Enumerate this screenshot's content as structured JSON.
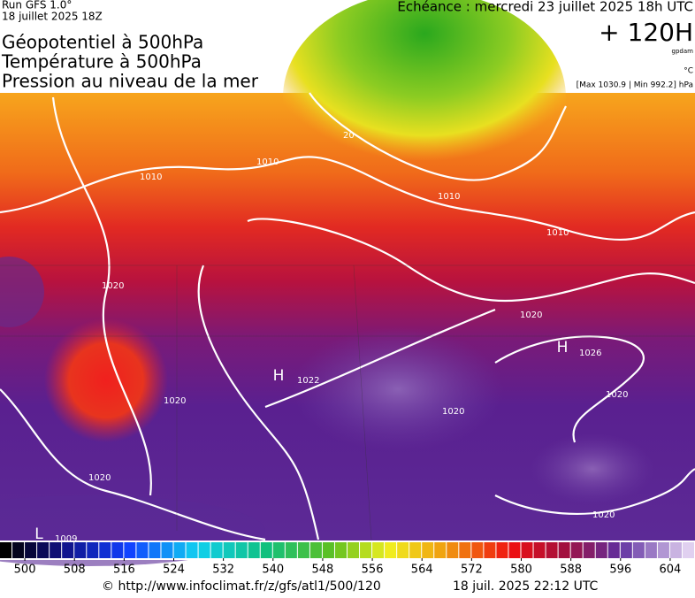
{
  "header": {
    "run": "Run GFS 1.0°",
    "run_date": "18 juillet 2025 18Z",
    "valid": "Echéance : mercredi 23 juillet 2025 18h UTC",
    "lead": "+ 120H",
    "unit_geo": "gpdam",
    "unit_temp": "°C",
    "pressure_range": "[Max 1030.9 | Min 992.2] hPa",
    "titles": [
      "Géopotentiel à 500hPa",
      "Température à 500hPa",
      "Pression au niveau de la mer"
    ]
  },
  "map": {
    "labels": [
      "1010",
      "1010",
      "1010",
      "1010",
      "20",
      "1020",
      "1020",
      "1020",
      "1020",
      "1020",
      "1020",
      "1020",
      "H",
      "1022",
      "H",
      "1026",
      "L",
      "1009"
    ]
  },
  "legend": {
    "lim": [
      496,
      608
    ],
    "ticks": [
      500,
      508,
      516,
      524,
      532,
      540,
      548,
      556,
      564,
      572,
      580,
      588,
      596,
      604
    ]
  },
  "footer": {
    "source": "© http://www.infoclimat.fr/z/gfs/atl1/500/120",
    "generated": "18 juil. 2025 22:12 UTC"
  }
}
